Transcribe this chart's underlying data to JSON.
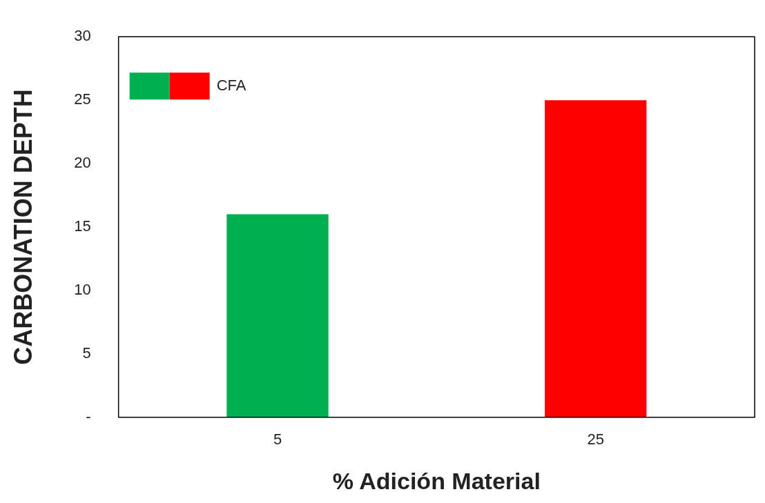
{
  "chart_data": {
    "type": "bar",
    "xlabel": "% Adición Material",
    "ylabel": "CARBONATION DEPTH",
    "categories": [
      "5",
      "25"
    ],
    "series": [
      {
        "name": "CFA",
        "colors": [
          "#00b050",
          "#ff0000"
        ],
        "values": [
          16,
          25
        ]
      }
    ],
    "ylim": [
      0,
      30
    ],
    "yticks": [
      {
        "value": 0,
        "label": "-"
      },
      5,
      10,
      15,
      20,
      25,
      30
    ],
    "grid": false,
    "legend": "top left"
  }
}
